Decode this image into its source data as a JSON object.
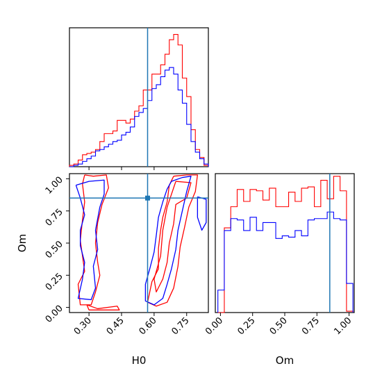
{
  "chart_data": [
    {
      "panel": "H0-histogram",
      "type": "histogram",
      "xlim": [
        0.21,
        0.85
      ],
      "ylim": [
        0,
        1.0
      ],
      "truth_line_x": 0.57,
      "xticks": [
        0.3,
        0.45,
        0.6,
        0.75
      ],
      "bin_edges": [
        0.21,
        0.23,
        0.25,
        0.27,
        0.29,
        0.31,
        0.33,
        0.35,
        0.37,
        0.39,
        0.41,
        0.43,
        0.45,
        0.47,
        0.49,
        0.51,
        0.53,
        0.55,
        0.57,
        0.59,
        0.61,
        0.63,
        0.65,
        0.67,
        0.69,
        0.71,
        0.73,
        0.75,
        0.77,
        0.79,
        0.81,
        0.83,
        0.85
      ],
      "series": [
        {
          "color": "#ff0000",
          "values": [
            0.01,
            0.02,
            0.05,
            0.09,
            0.1,
            0.11,
            0.13,
            0.19,
            0.25,
            0.25,
            0.27,
            0.35,
            0.35,
            0.33,
            0.36,
            0.42,
            0.46,
            0.58,
            0.58,
            0.7,
            0.7,
            0.77,
            0.85,
            0.96,
            1.0,
            0.92,
            0.67,
            0.53,
            0.28,
            0.13,
            0.07,
            0.01
          ]
        },
        {
          "color": "#0000ff",
          "values": [
            0.0,
            0.01,
            0.02,
            0.04,
            0.06,
            0.08,
            0.12,
            0.13,
            0.15,
            0.17,
            0.19,
            0.2,
            0.24,
            0.26,
            0.3,
            0.38,
            0.41,
            0.44,
            0.5,
            0.59,
            0.62,
            0.68,
            0.73,
            0.75,
            0.7,
            0.58,
            0.48,
            0.32,
            0.19,
            0.11,
            0.06,
            0.02
          ]
        }
      ]
    },
    {
      "panel": "H0-Om-contours",
      "type": "contour",
      "xlabel": "H0",
      "ylabel": "Om",
      "xlim": [
        0.21,
        0.85
      ],
      "ylim": [
        -0.04,
        1.04
      ],
      "xticks": [
        0.3,
        0.45,
        0.6,
        0.75
      ],
      "xtick_labels": [
        "0.30",
        "0.45",
        "0.60",
        "0.75"
      ],
      "yticks": [
        0.0,
        0.25,
        0.5,
        0.75,
        1.0
      ],
      "ytick_labels": [
        "0.00",
        "0.25",
        "0.50",
        "0.75",
        "1.00"
      ],
      "truth_point": [
        0.57,
        0.85
      ],
      "series": [
        {
          "color": "#ff0000",
          "contours": [
            [
              [
                0.28,
                1.03
              ],
              [
                0.32,
                1.02
              ],
              [
                0.38,
                1.03
              ],
              [
                0.39,
                0.93
              ],
              [
                0.36,
                0.8
              ],
              [
                0.34,
                0.66
              ],
              [
                0.33,
                0.5
              ],
              [
                0.34,
                0.35
              ],
              [
                0.35,
                0.25
              ],
              [
                0.33,
                0.12
              ],
              [
                0.31,
                0.02
              ],
              [
                0.26,
                0.02
              ],
              [
                0.25,
                0.18
              ],
              [
                0.28,
                0.28
              ],
              [
                0.27,
                0.4
              ],
              [
                0.26,
                0.52
              ],
              [
                0.27,
                0.68
              ],
              [
                0.28,
                0.82
              ],
              [
                0.27,
                0.96
              ],
              [
                0.28,
                1.03
              ]
            ],
            [
              [
                0.29,
                0.02
              ],
              [
                0.34,
                -0.01
              ],
              [
                0.43,
                0.01
              ],
              [
                0.44,
                -0.02
              ],
              [
                0.3,
                -0.02
              ],
              [
                0.29,
                0.02
              ]
            ],
            [
              [
                0.69,
                1.02
              ],
              [
                0.75,
                1.03
              ],
              [
                0.8,
                1.03
              ],
              [
                0.79,
                0.9
              ],
              [
                0.76,
                0.78
              ],
              [
                0.74,
                0.62
              ],
              [
                0.72,
                0.47
              ],
              [
                0.71,
                0.32
              ],
              [
                0.69,
                0.15
              ],
              [
                0.66,
                0.04
              ],
              [
                0.61,
                0.01
              ],
              [
                0.57,
                0.04
              ],
              [
                0.59,
                0.2
              ],
              [
                0.62,
                0.3
              ],
              [
                0.62,
                0.46
              ],
              [
                0.63,
                0.6
              ],
              [
                0.64,
                0.7
              ],
              [
                0.66,
                0.82
              ],
              [
                0.67,
                0.95
              ],
              [
                0.69,
                1.02
              ]
            ],
            [
              [
                0.7,
                0.98
              ],
              [
                0.77,
                0.97
              ],
              [
                0.75,
                0.85
              ],
              [
                0.7,
                0.8
              ],
              [
                0.69,
                0.65
              ],
              [
                0.67,
                0.5
              ],
              [
                0.66,
                0.35
              ],
              [
                0.64,
                0.22
              ],
              [
                0.61,
                0.12
              ],
              [
                0.6,
                0.22
              ],
              [
                0.63,
                0.4
              ],
              [
                0.64,
                0.6
              ],
              [
                0.66,
                0.78
              ],
              [
                0.7,
                0.98
              ]
            ]
          ]
        },
        {
          "color": "#0000ff",
          "contours": [
            [
              [
                0.24,
                0.95
              ],
              [
                0.3,
                0.98
              ],
              [
                0.37,
                0.99
              ],
              [
                0.37,
                0.88
              ],
              [
                0.35,
                0.78
              ],
              [
                0.33,
                0.6
              ],
              [
                0.34,
                0.45
              ],
              [
                0.32,
                0.32
              ],
              [
                0.33,
                0.15
              ],
              [
                0.31,
                0.06
              ],
              [
                0.25,
                0.07
              ],
              [
                0.27,
                0.22
              ],
              [
                0.28,
                0.35
              ],
              [
                0.26,
                0.48
              ],
              [
                0.26,
                0.6
              ],
              [
                0.28,
                0.72
              ],
              [
                0.26,
                0.85
              ],
              [
                0.24,
                0.95
              ]
            ],
            [
              [
                0.68,
                0.98
              ],
              [
                0.73,
                1.01
              ],
              [
                0.77,
                1.02
              ],
              [
                0.75,
                0.9
              ],
              [
                0.73,
                0.75
              ],
              [
                0.71,
                0.6
              ],
              [
                0.7,
                0.45
              ],
              [
                0.68,
                0.3
              ],
              [
                0.66,
                0.18
              ],
              [
                0.64,
                0.07
              ],
              [
                0.6,
                0.02
              ],
              [
                0.56,
                0.05
              ],
              [
                0.56,
                0.18
              ],
              [
                0.58,
                0.3
              ],
              [
                0.6,
                0.43
              ],
              [
                0.61,
                0.56
              ],
              [
                0.62,
                0.7
              ],
              [
                0.64,
                0.82
              ],
              [
                0.66,
                0.92
              ],
              [
                0.68,
                0.98
              ]
            ],
            [
              [
                0.8,
                0.86
              ],
              [
                0.84,
                0.84
              ],
              [
                0.84,
                0.66
              ],
              [
                0.82,
                0.6
              ],
              [
                0.8,
                0.7
              ],
              [
                0.8,
                0.86
              ]
            ]
          ]
        }
      ]
    },
    {
      "panel": "Om-histogram",
      "type": "histogram",
      "xlabel": "Om",
      "xlim": [
        -0.04,
        1.04
      ],
      "ylim": [
        0,
        1.0
      ],
      "truth_line_x": 0.85,
      "xticks": [
        0.0,
        0.25,
        0.5,
        0.75,
        1.0
      ],
      "xtick_labels": [
        "0.00",
        "0.25",
        "0.50",
        "0.75",
        "1.00"
      ],
      "bin_edges": [
        -0.02,
        0.03,
        0.08,
        0.13,
        0.18,
        0.23,
        0.28,
        0.33,
        0.38,
        0.43,
        0.48,
        0.53,
        0.58,
        0.63,
        0.68,
        0.73,
        0.78,
        0.83,
        0.88,
        0.93,
        0.98,
        1.03
      ],
      "series": [
        {
          "color": "#ff0000",
          "values": [
            0.0,
            0.64,
            0.8,
            0.93,
            0.84,
            0.93,
            0.92,
            0.85,
            0.94,
            0.8,
            0.8,
            0.91,
            0.84,
            0.94,
            0.95,
            0.8,
            1.0,
            0.86,
            1.03,
            0.92,
            0.01
          ]
        },
        {
          "color": "#0000ff",
          "values": [
            0.17,
            0.62,
            0.71,
            0.7,
            0.62,
            0.72,
            0.62,
            0.68,
            0.68,
            0.56,
            0.58,
            0.57,
            0.62,
            0.58,
            0.7,
            0.71,
            0.71,
            0.76,
            0.71,
            0.7,
            0.22
          ]
        }
      ]
    }
  ]
}
